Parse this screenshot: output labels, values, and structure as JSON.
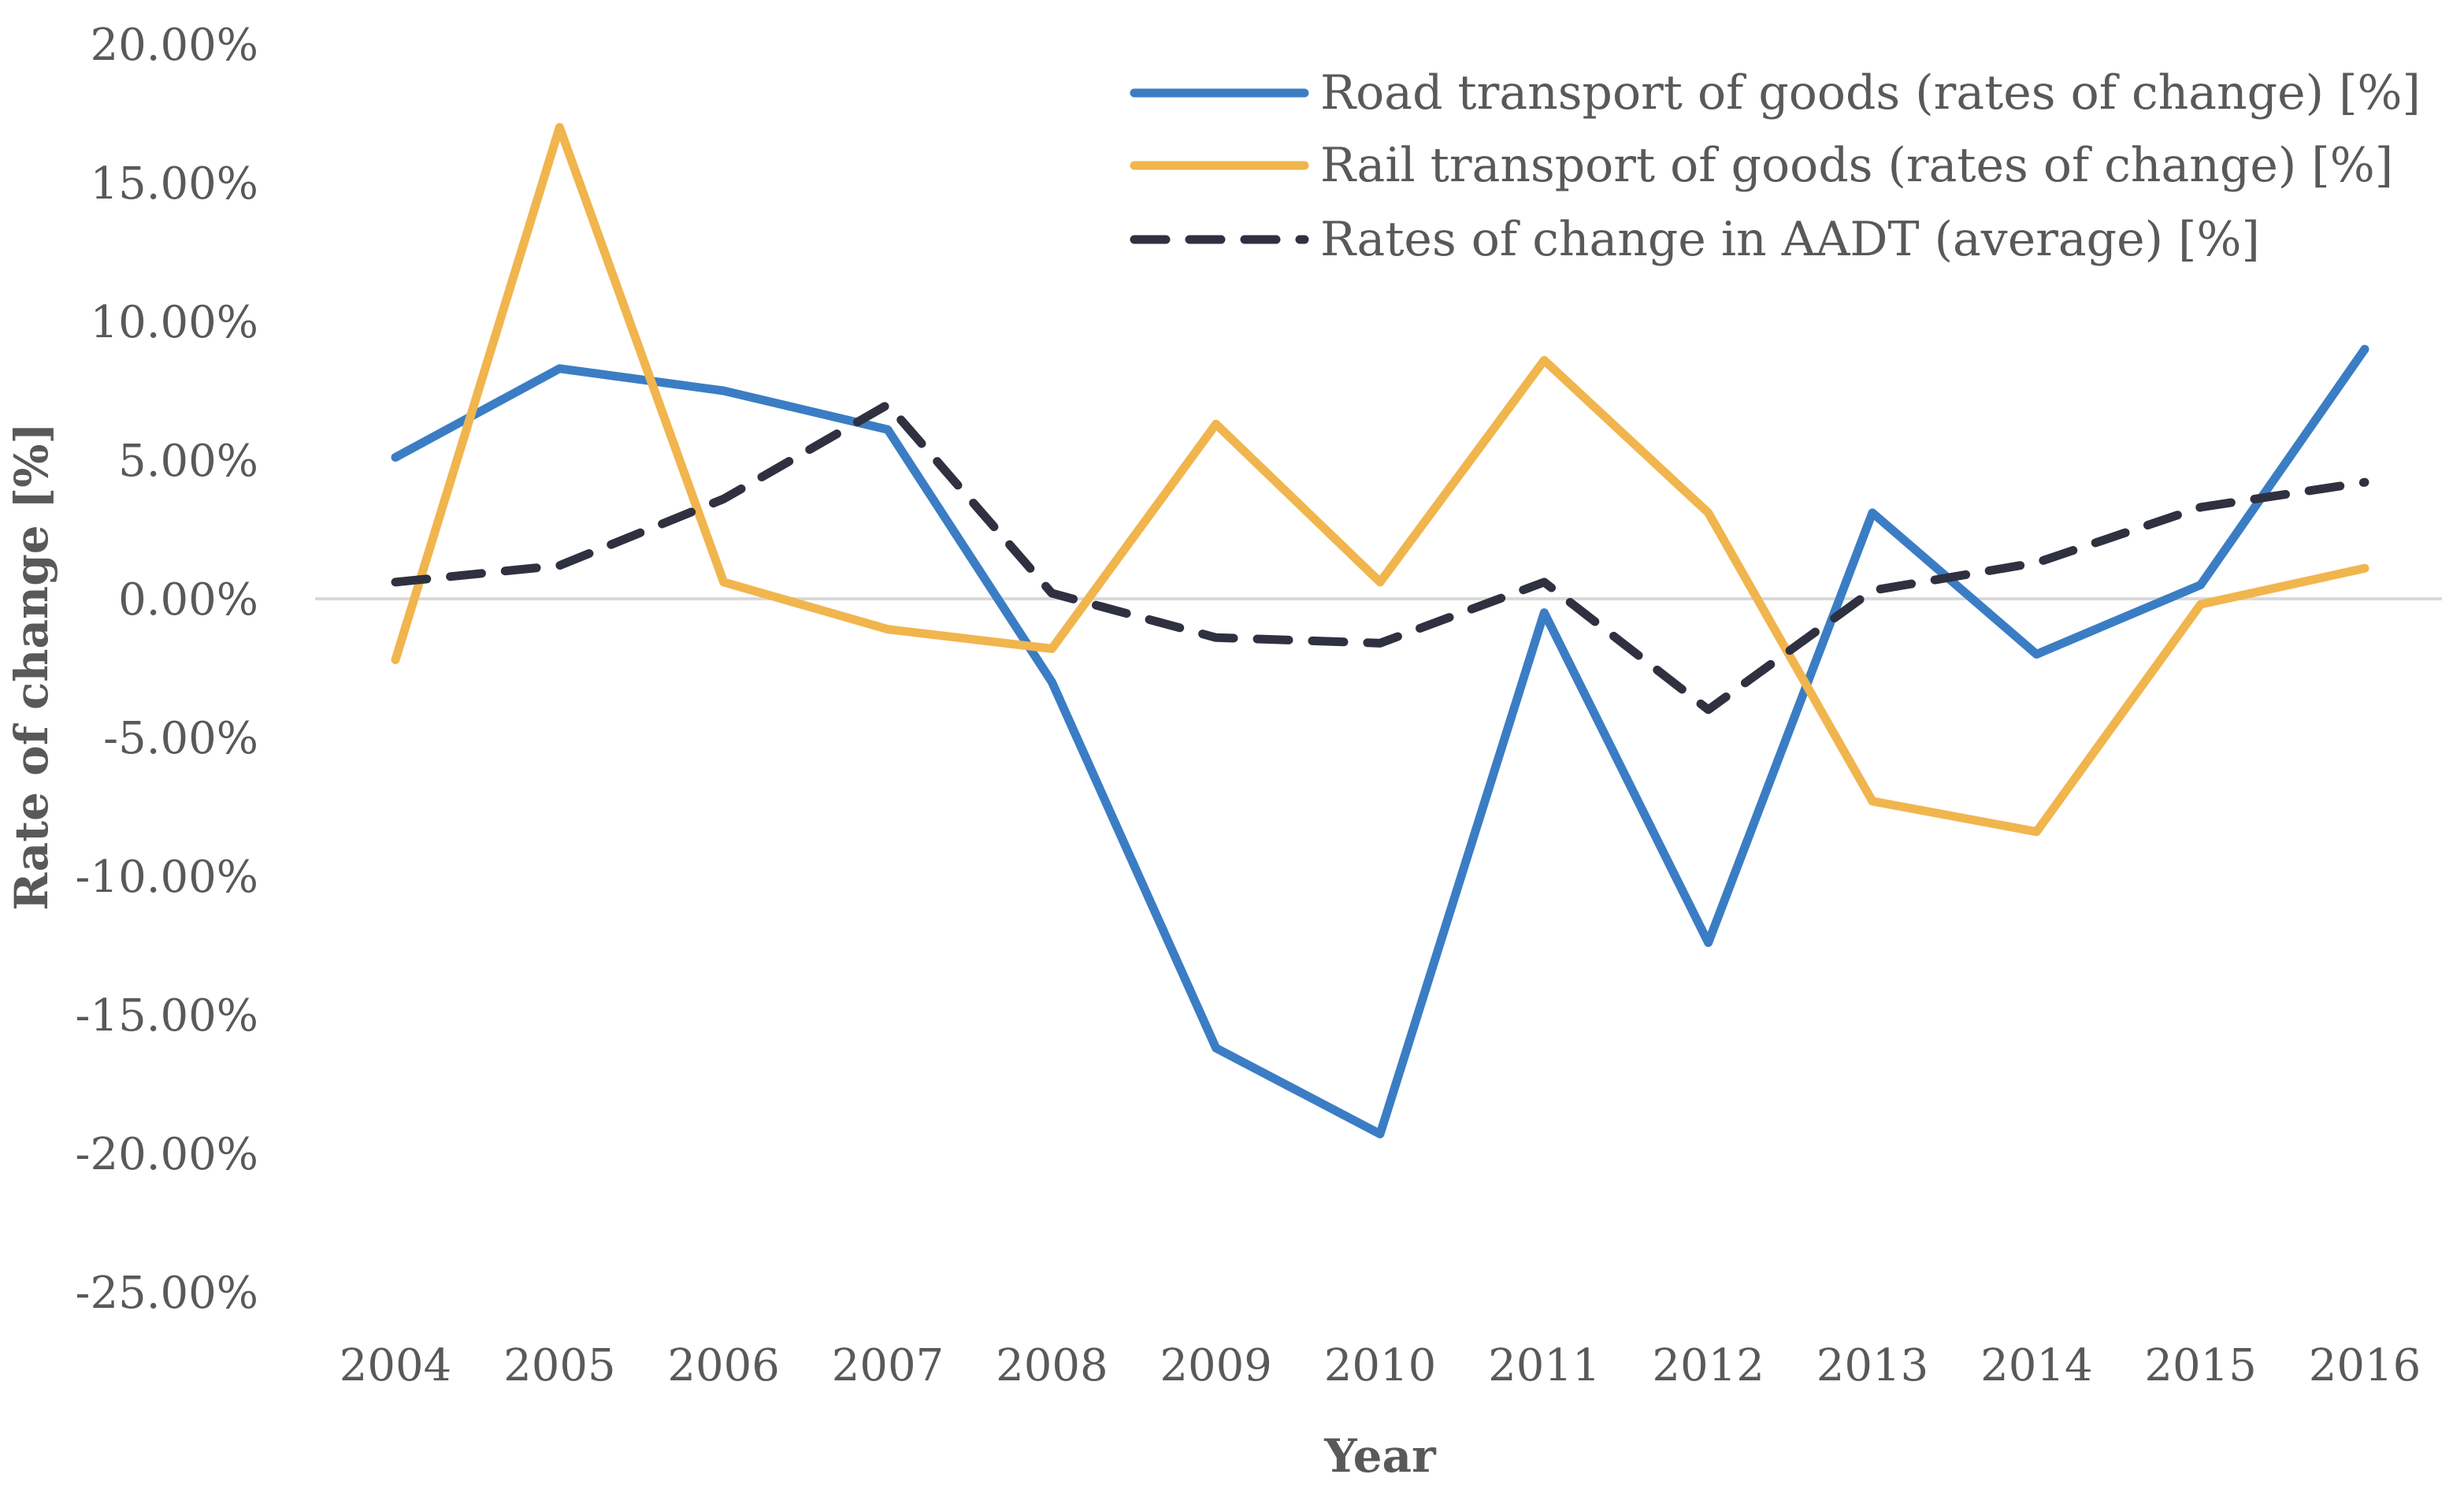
{
  "chart_data": {
    "type": "line",
    "title": "",
    "xlabel": "Year",
    "ylabel": "Rate of change [%]",
    "ylim": [
      -25,
      20
    ],
    "yticks": [
      {
        "value": 20,
        "label": "20.00%"
      },
      {
        "value": 15,
        "label": "15.00%"
      },
      {
        "value": 10,
        "label": "10.00%"
      },
      {
        "value": 5,
        "label": "5.00%"
      },
      {
        "value": 0,
        "label": "0.00%"
      },
      {
        "value": -5,
        "label": "-5.00%"
      },
      {
        "value": -10,
        "label": "-10.00%"
      },
      {
        "value": -15,
        "label": "-15.00%"
      },
      {
        "value": -20,
        "label": "-20.00%"
      },
      {
        "value": -25,
        "label": "-25.00%"
      }
    ],
    "categories": [
      "2004",
      "2005",
      "2006",
      "2007",
      "2008",
      "2009",
      "2010",
      "2011",
      "2012",
      "2013",
      "2014",
      "2015",
      "2016"
    ],
    "legend_position": "top-right",
    "zero_line_color": "#d9d9d9",
    "series": [
      {
        "name": "Road transport of goods (rates of change) [%]",
        "color": "#3b7dc4",
        "style": "solid",
        "values": [
          5.1,
          8.3,
          7.5,
          6.1,
          -3.0,
          -16.2,
          -19.3,
          -0.5,
          -12.4,
          3.1,
          -2.0,
          0.5,
          9.0
        ]
      },
      {
        "name": "Rail transport of goods (rates of change) [%]",
        "color": "#f1b54d",
        "style": "solid",
        "values": [
          -2.2,
          17.0,
          0.6,
          -1.1,
          -1.8,
          6.3,
          0.6,
          8.6,
          3.1,
          -7.3,
          -8.4,
          -0.2,
          1.1
        ]
      },
      {
        "name": "Rates of change in AADT (average) [%]",
        "color": "#2f3140",
        "style": "dashed",
        "values": [
          0.6,
          1.2,
          3.6,
          7.0,
          0.2,
          -1.4,
          -1.6,
          0.6,
          -4.0,
          0.3,
          1.3,
          3.3,
          4.2
        ]
      }
    ]
  }
}
